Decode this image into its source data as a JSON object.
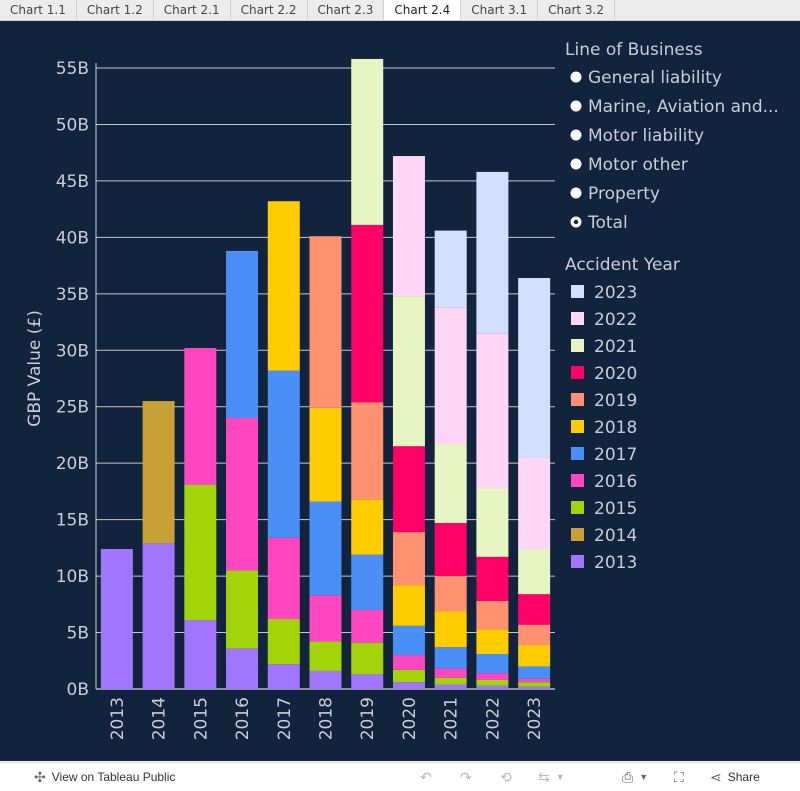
{
  "tabs": [
    {
      "label": "Chart 1.1",
      "active": false
    },
    {
      "label": "Chart 1.2",
      "active": false
    },
    {
      "label": "Chart 2.1",
      "active": false
    },
    {
      "label": "Chart 2.2",
      "active": false
    },
    {
      "label": "Chart 2.3",
      "active": false
    },
    {
      "label": "Chart 2.4",
      "active": true
    },
    {
      "label": "Chart 3.1",
      "active": false
    },
    {
      "label": "Chart 3.2",
      "active": false
    }
  ],
  "footer": {
    "view_label": "View on Tableau Public",
    "share_label": "Share"
  },
  "legend": {
    "lob_title": "Line of Business",
    "lob_items": [
      {
        "label": "General liability",
        "selected": false
      },
      {
        "label": "Marine, Aviation and...",
        "selected": false
      },
      {
        "label": "Motor liability",
        "selected": false
      },
      {
        "label": "Motor other",
        "selected": false
      },
      {
        "label": "Property",
        "selected": false
      },
      {
        "label": "Total",
        "selected": true
      }
    ],
    "year_title": "Accident Year"
  },
  "colors": {
    "background": "#12233d",
    "text": "#c9ced6",
    "2013": "#a275ff",
    "2014": "#c9a033",
    "2015": "#a3d40a",
    "2016": "#ff47c2",
    "2017": "#4a8ff5",
    "2018": "#ffcc00",
    "2019": "#ff9170",
    "2020": "#ff0066",
    "2021": "#e6f5c2",
    "2022": "#ffd6f5",
    "2023": "#d1e0ff"
  },
  "chart_data": {
    "type": "bar",
    "stacked": true,
    "ylabel": "GBP Value (£)",
    "ylim": [
      0,
      55
    ],
    "yticks": [
      "0B",
      "5B",
      "10B",
      "15B",
      "20B",
      "25B",
      "30B",
      "35B",
      "40B",
      "45B",
      "50B",
      "55B"
    ],
    "grid": true,
    "legend_position": "right",
    "categories": [
      "2013",
      "2014",
      "2015",
      "2016",
      "2017",
      "2018",
      "2019",
      "2020",
      "2021",
      "2022",
      "2023"
    ],
    "series": [
      {
        "name": "2013",
        "values": [
          12.4,
          12.9,
          6.1,
          3.6,
          2.2,
          1.6,
          1.3,
          0.6,
          0.4,
          0.3,
          0.2
        ]
      },
      {
        "name": "2014",
        "values": [
          0,
          12.6,
          0,
          0,
          0,
          0,
          0,
          0,
          0,
          0,
          0
        ]
      },
      {
        "name": "2015",
        "values": [
          0,
          0,
          12.0,
          6.9,
          4.0,
          2.6,
          2.8,
          1.1,
          0.6,
          0.5,
          0.4
        ]
      },
      {
        "name": "2016",
        "values": [
          0,
          0,
          12.1,
          13.5,
          7.2,
          4.1,
          2.9,
          1.3,
          0.8,
          0.6,
          0.3
        ]
      },
      {
        "name": "2017",
        "values": [
          0,
          0,
          0,
          14.8,
          14.8,
          8.3,
          4.9,
          2.6,
          1.9,
          1.7,
          1.1
        ]
      },
      {
        "name": "2018",
        "values": [
          0,
          0,
          0,
          0,
          15.0,
          8.3,
          4.9,
          3.6,
          3.2,
          2.2,
          1.9
        ]
      },
      {
        "name": "2019",
        "values": [
          0,
          0,
          0,
          0,
          0,
          15.2,
          8.6,
          4.7,
          3.1,
          2.5,
          1.8
        ]
      },
      {
        "name": "2020",
        "values": [
          0,
          0,
          0,
          0,
          0,
          0,
          15.7,
          7.6,
          4.7,
          3.9,
          2.7
        ]
      },
      {
        "name": "2021",
        "values": [
          0,
          0,
          0,
          0,
          0,
          0,
          14.7,
          13.3,
          7.0,
          6.1,
          4.0
        ]
      },
      {
        "name": "2022",
        "values": [
          0,
          0,
          0,
          0,
          0,
          0,
          0,
          12.4,
          12.1,
          13.7,
          8.1
        ]
      },
      {
        "name": "2023",
        "values": [
          0,
          0,
          0,
          0,
          0,
          0,
          0,
          0,
          6.8,
          14.3,
          15.9
        ]
      }
    ]
  }
}
